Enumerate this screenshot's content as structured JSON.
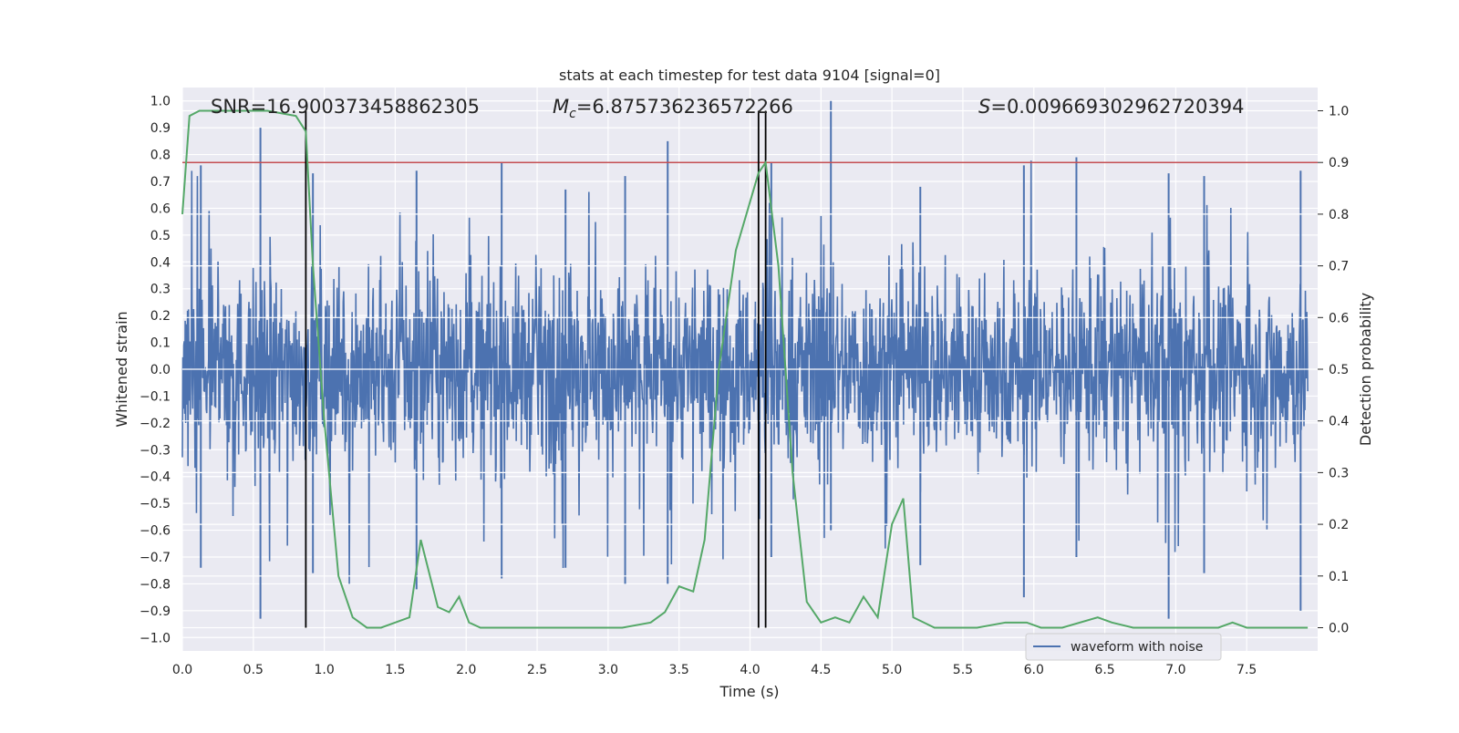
{
  "chart_data": {
    "type": "line",
    "title": "stats at each timestep for test data 9104 [signal=0]",
    "xlabel": "Time (s)",
    "ylabel_left": "Whitened strain",
    "ylabel_right": "Detection probability",
    "xlim": [
      0,
      8
    ],
    "ylim_left": [
      -1.05,
      1.05
    ],
    "ylim_right": [
      -0.045,
      1.045
    ],
    "x_ticks": [
      "0.0",
      "0.5",
      "1.0",
      "1.5",
      "2.0",
      "2.5",
      "3.0",
      "3.5",
      "4.0",
      "4.5",
      "5.0",
      "5.5",
      "6.0",
      "6.5",
      "7.0",
      "7.5"
    ],
    "y_ticks_left": [
      "1.0",
      "0.9",
      "0.8",
      "0.7",
      "0.6",
      "0.5",
      "0.4",
      "0.3",
      "0.2",
      "0.1",
      "0.0",
      "−0.1",
      "−0.2",
      "−0.3",
      "−0.4",
      "−0.5",
      "−0.6",
      "−0.7",
      "−0.8",
      "−0.9",
      "−1.0"
    ],
    "y_ticks_right": [
      "1.0",
      "0.9",
      "0.8",
      "0.7",
      "0.6",
      "0.5",
      "0.4",
      "0.3",
      "0.2",
      "0.1",
      "0.0"
    ],
    "annotations": {
      "snr": "SNR=16.900373458862305",
      "mc_value": "=6.875736236572266",
      "s_value": "=0.009669302962720394"
    },
    "threshold": 0.9,
    "vertical_lines": [
      0.87,
      4.06,
      4.11
    ],
    "legend": {
      "label": "waveform with noise",
      "location": "lower-right"
    },
    "series": [
      {
        "name": "waveform with noise",
        "color": "#4c72b0",
        "description": "noisy whitened strain, approx. range -0.95 to 1.0",
        "spikes": [
          [
            0.55,
            0.9,
            -0.93
          ],
          [
            0.13,
            0.76,
            -0.74
          ],
          [
            0.92,
            0.73,
            -0.76
          ],
          [
            3.42,
            0.85,
            -0.8
          ],
          [
            4.57,
            1.0,
            -0.6
          ],
          [
            5.93,
            0.76,
            -0.85
          ],
          [
            6.95,
            0.73,
            -0.93
          ],
          [
            7.88,
            0.74,
            -0.9
          ],
          [
            2.25,
            0.77,
            -0.78
          ],
          [
            1.65,
            0.74,
            -0.82
          ],
          [
            3.12,
            0.72,
            -0.8
          ],
          [
            4.15,
            0.77,
            -0.7
          ],
          [
            6.3,
            0.79,
            -0.7
          ],
          [
            7.2,
            0.72,
            -0.76
          ],
          [
            2.7,
            0.67,
            -0.74
          ],
          [
            5.2,
            0.68,
            -0.73
          ]
        ]
      },
      {
        "name": "detection probability",
        "color": "#55a868",
        "axis": "right",
        "x": [
          0,
          0.05,
          0.12,
          0.2,
          0.4,
          0.6,
          0.8,
          0.87,
          0.92,
          1.0,
          1.1,
          1.2,
          1.3,
          1.4,
          1.5,
          1.6,
          1.68,
          1.8,
          1.88,
          1.95,
          2.02,
          2.1,
          2.3,
          2.5,
          2.7,
          2.9,
          3.1,
          3.3,
          3.4,
          3.5,
          3.6,
          3.68,
          3.78,
          3.9,
          4.06,
          4.11,
          4.2,
          4.3,
          4.4,
          4.5,
          4.6,
          4.7,
          4.8,
          4.9,
          5.0,
          5.08,
          5.15,
          5.3,
          5.6,
          5.8,
          5.95,
          6.05,
          6.2,
          6.45,
          6.55,
          6.7,
          7.0,
          7.3,
          7.4,
          7.5,
          7.7,
          7.93
        ],
        "y": [
          0.8,
          0.99,
          1.0,
          1.0,
          1.0,
          1.0,
          0.99,
          0.96,
          0.7,
          0.4,
          0.1,
          0.02,
          0.0,
          0.0,
          0.01,
          0.02,
          0.17,
          0.04,
          0.03,
          0.06,
          0.01,
          0.0,
          0.0,
          0.0,
          0.0,
          0.0,
          0.0,
          0.01,
          0.03,
          0.08,
          0.07,
          0.17,
          0.5,
          0.73,
          0.88,
          0.9,
          0.7,
          0.3,
          0.05,
          0.01,
          0.02,
          0.01,
          0.06,
          0.02,
          0.2,
          0.25,
          0.02,
          0.0,
          0.0,
          0.01,
          0.01,
          0.0,
          0.0,
          0.02,
          0.01,
          0.0,
          0.0,
          0.0,
          0.01,
          0.0,
          0.0,
          0.0
        ]
      }
    ]
  }
}
